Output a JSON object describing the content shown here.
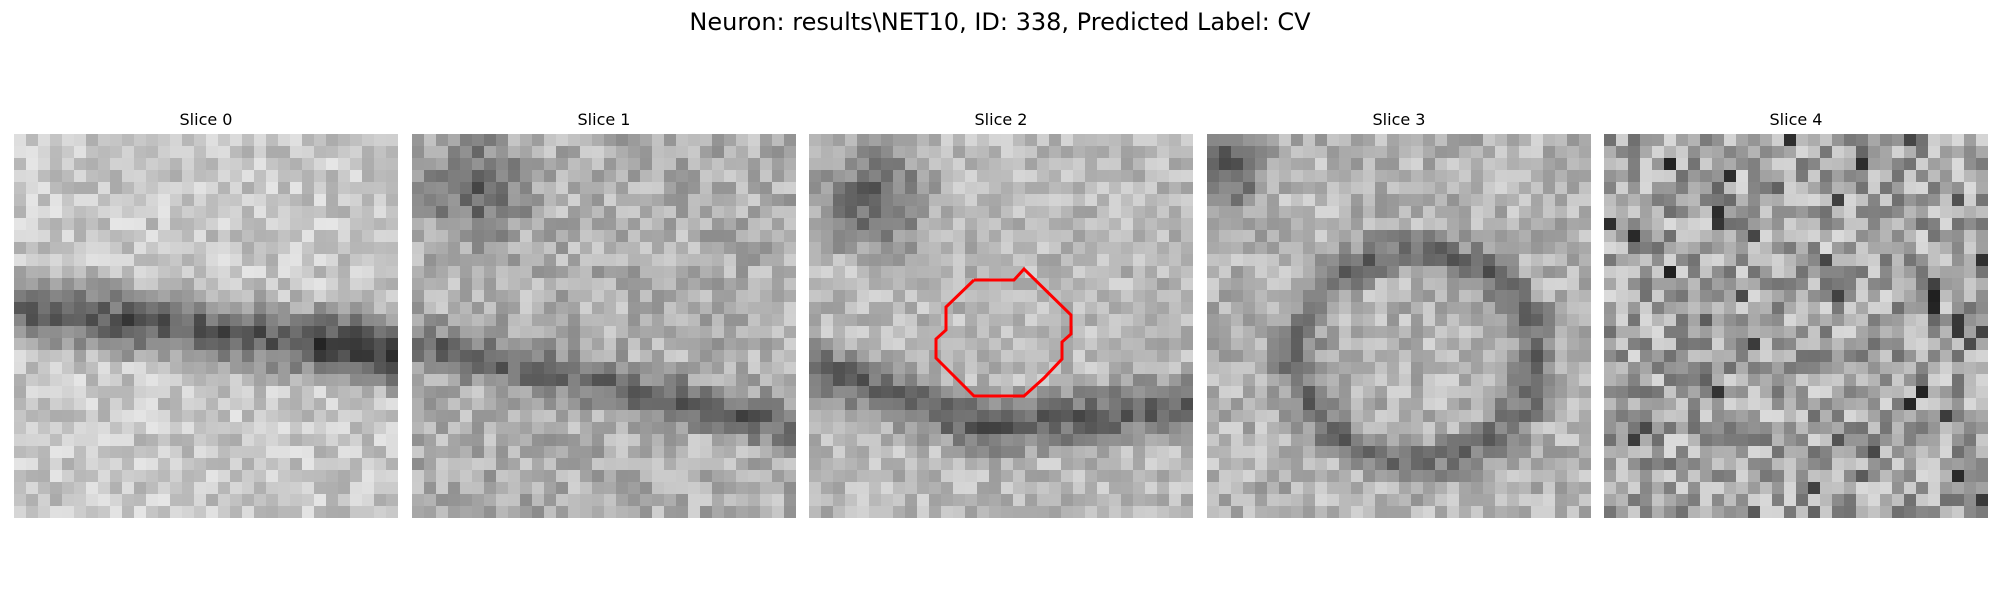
{
  "figure": {
    "title": "Neuron: results\\NET10, ID: 338, Predicted Label: CV",
    "colormap": "gray",
    "contour_color": "#ff0000"
  },
  "slices": [
    {
      "label": "Slice 0",
      "has_contour": false
    },
    {
      "label": "Slice 1",
      "has_contour": false
    },
    {
      "label": "Slice 2",
      "has_contour": true
    },
    {
      "label": "Slice 3",
      "has_contour": false
    },
    {
      "label": "Slice 4",
      "has_contour": false
    }
  ]
}
